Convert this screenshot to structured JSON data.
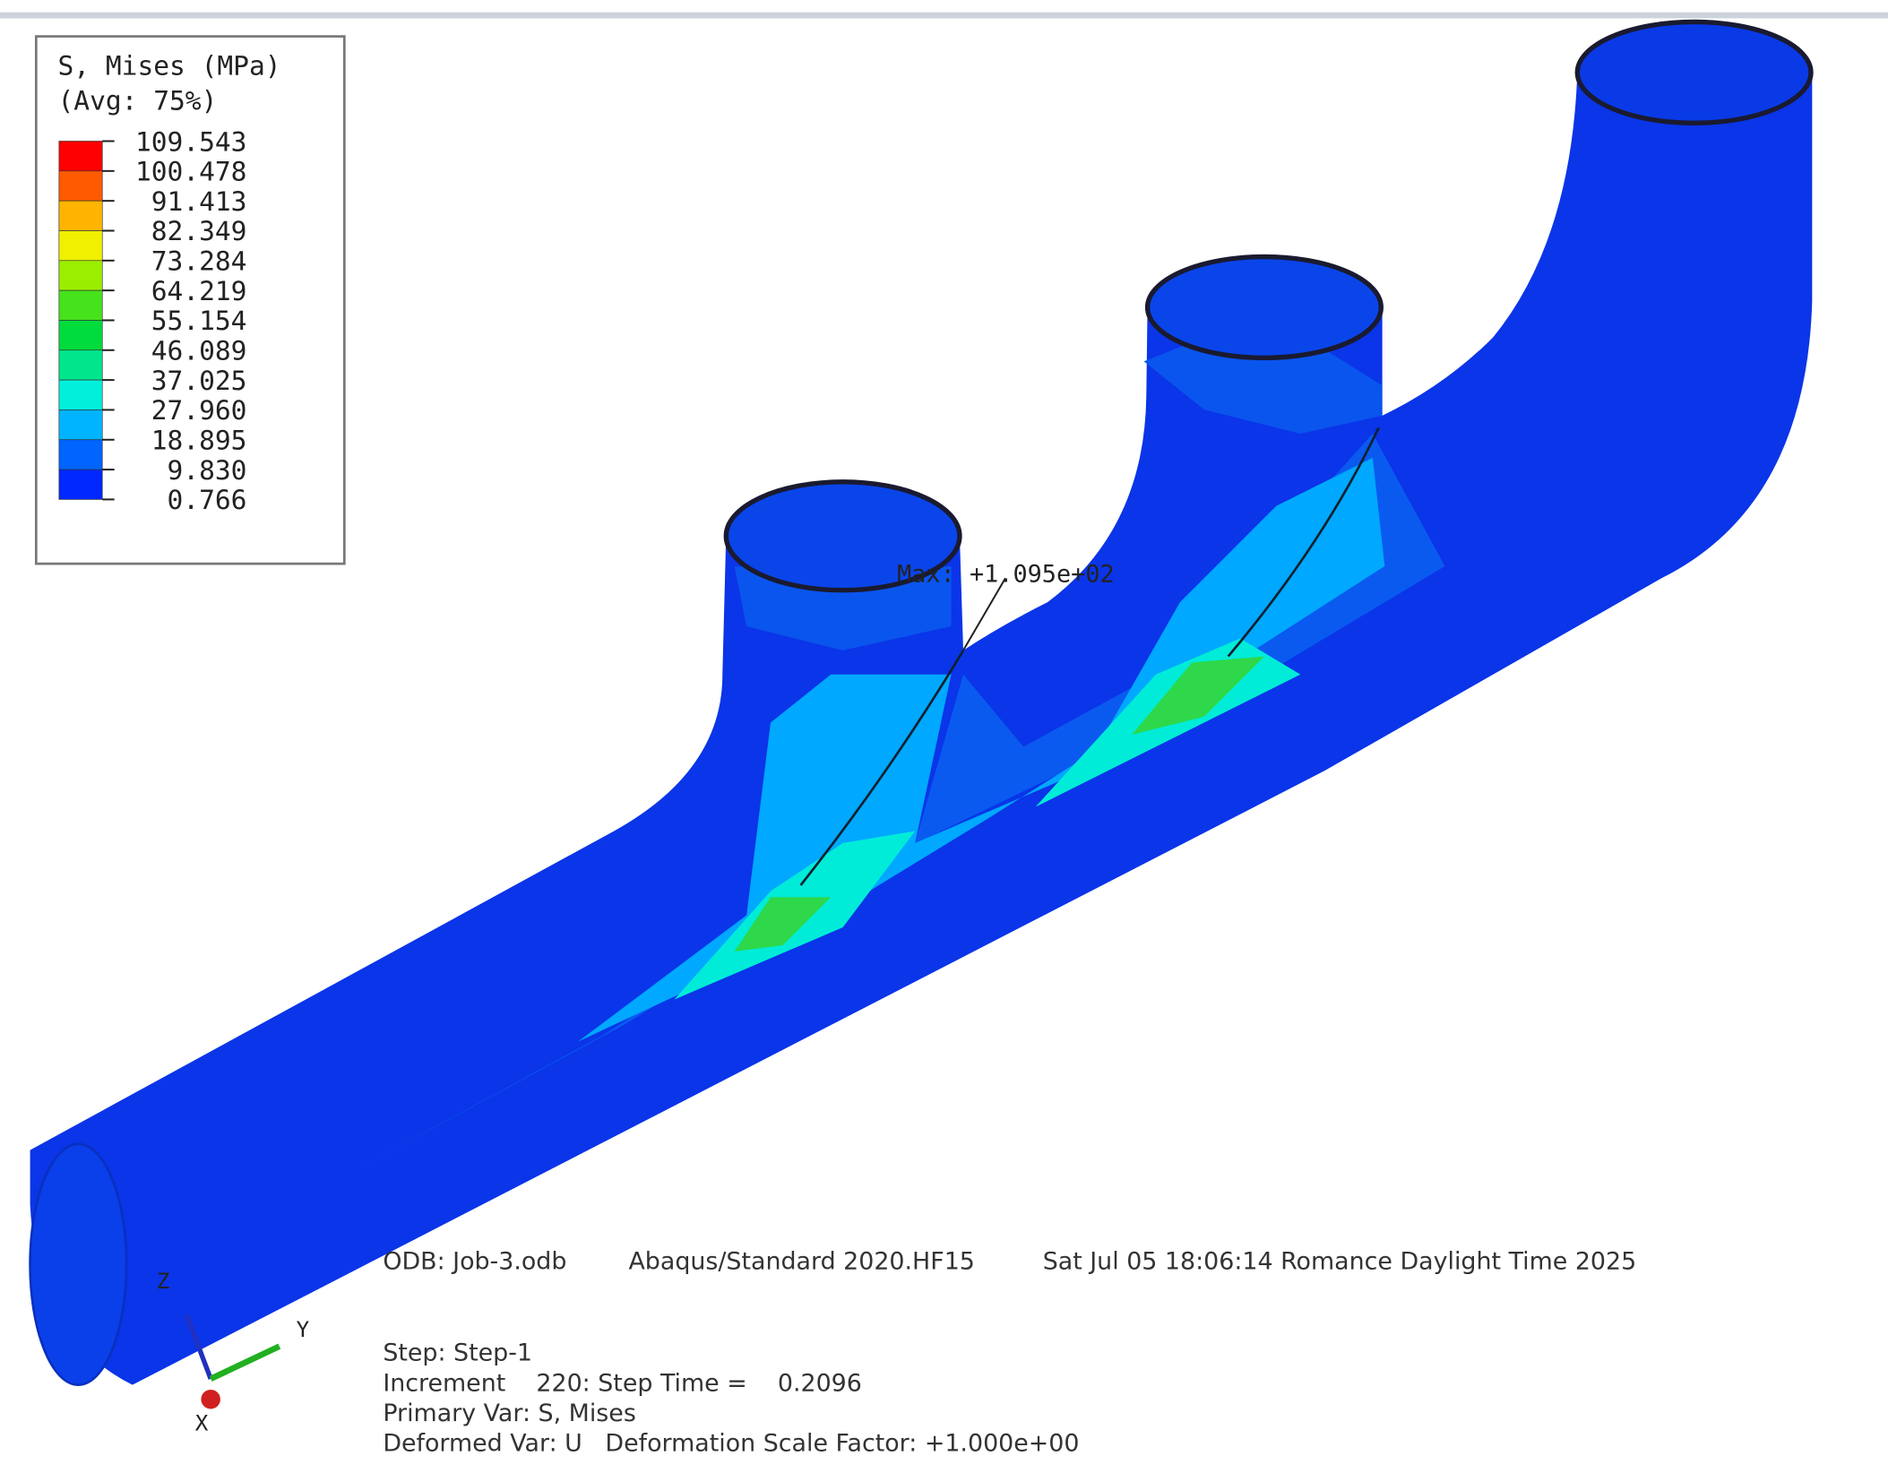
{
  "legend": {
    "title_lines": [
      "S, Mises (MPa)",
      "(Avg: 75%)"
    ],
    "values": [
      "109.543",
      "100.478",
      "91.413",
      "82.349",
      "73.284",
      "64.219",
      "55.154",
      "46.089",
      "37.025",
      "27.960",
      "18.895",
      "9.830",
      "0.766"
    ],
    "colors": [
      "#ff0000",
      "#ff5a00",
      "#ffb400",
      "#f0f000",
      "#9bee00",
      "#46e21c",
      "#00dc3c",
      "#00e68c",
      "#00f0dc",
      "#00b4ff",
      "#0064ff",
      "#0028ff"
    ]
  },
  "max_label": "Max: +1.095e+02",
  "info": {
    "odb": "ODB: Job-3.odb",
    "solver": "Abaqus/Standard 2020.HF15",
    "date": "Sat Jul 05 18:06:14 Romance Daylight Time 2025",
    "lines": [
      "Step: Step-1",
      "Increment    220: Step Time =    0.2096",
      "Primary Var: S, Mises",
      "Deformed Var: U   Deformation Scale Factor: +1.000e+00"
    ]
  },
  "triad": {
    "z": "Z",
    "y": "Y",
    "x": "X"
  }
}
